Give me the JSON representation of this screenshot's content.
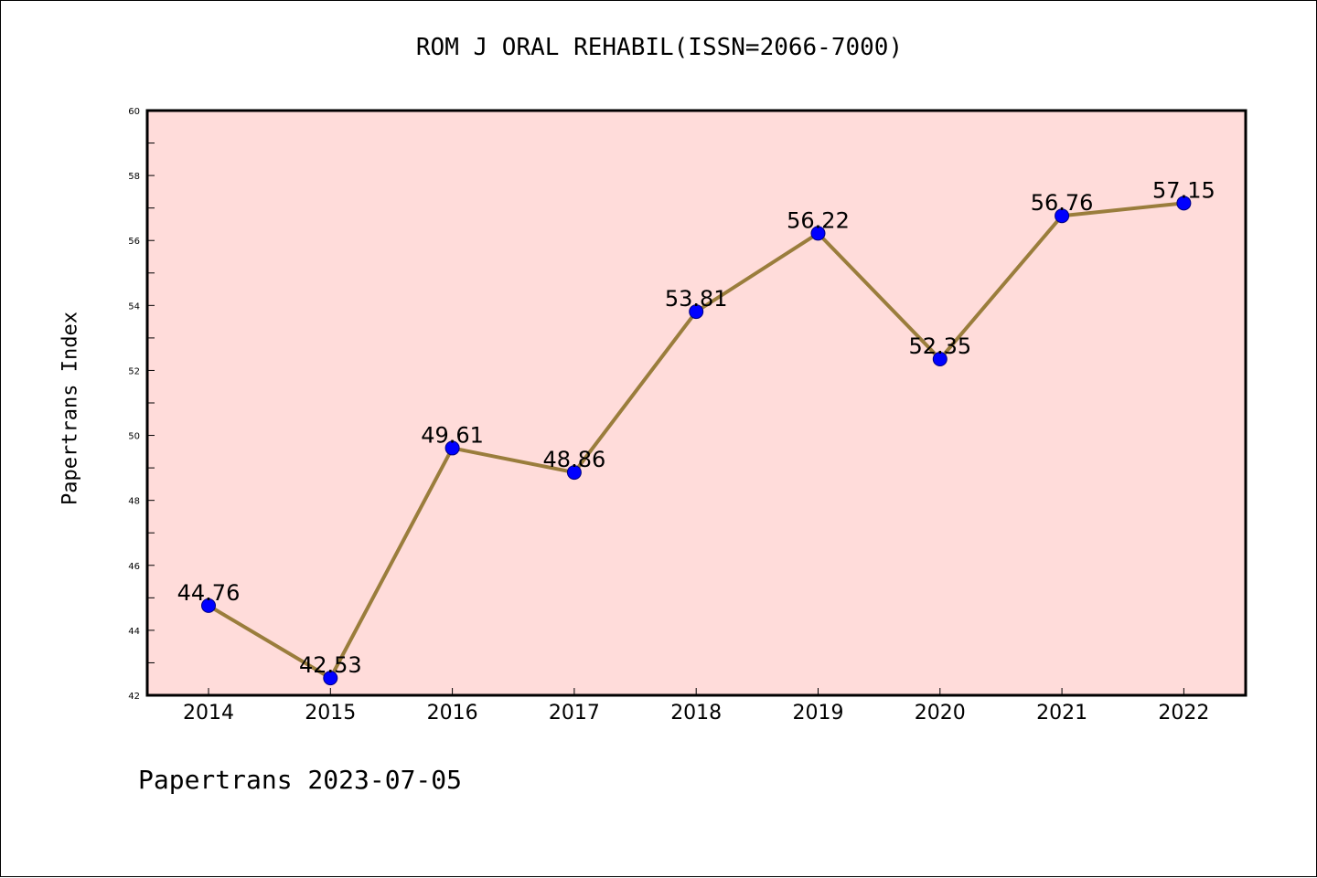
{
  "title": "ROM J ORAL REHABIL(ISSN=2066-7000)",
  "footer": "Papertrans 2023-07-05",
  "chart_data": {
    "type": "line",
    "title": "ROM J ORAL REHABIL(ISSN=2066-7000)",
    "xlabel": "",
    "ylabel": "Papertrans Index",
    "categories": [
      "2014",
      "2015",
      "2016",
      "2017",
      "2018",
      "2019",
      "2020",
      "2021",
      "2022"
    ],
    "values": [
      44.76,
      42.53,
      49.61,
      48.86,
      53.81,
      56.22,
      52.35,
      56.76,
      57.15
    ],
    "data_labels": [
      "44.76",
      "42.53",
      "49.61",
      "48.86",
      "53.81",
      "56.22",
      "52.35",
      "56.76",
      "57.15"
    ],
    "ylim": [
      42,
      60
    ],
    "yticks": [
      42,
      44,
      46,
      48,
      50,
      52,
      54,
      56,
      58,
      60
    ],
    "grid": false,
    "legend": "none",
    "colors": {
      "plot_background": "#ffdcda",
      "line": "#9a7d3c",
      "marker": "#0000ff",
      "marker_edge": "#000080"
    }
  }
}
